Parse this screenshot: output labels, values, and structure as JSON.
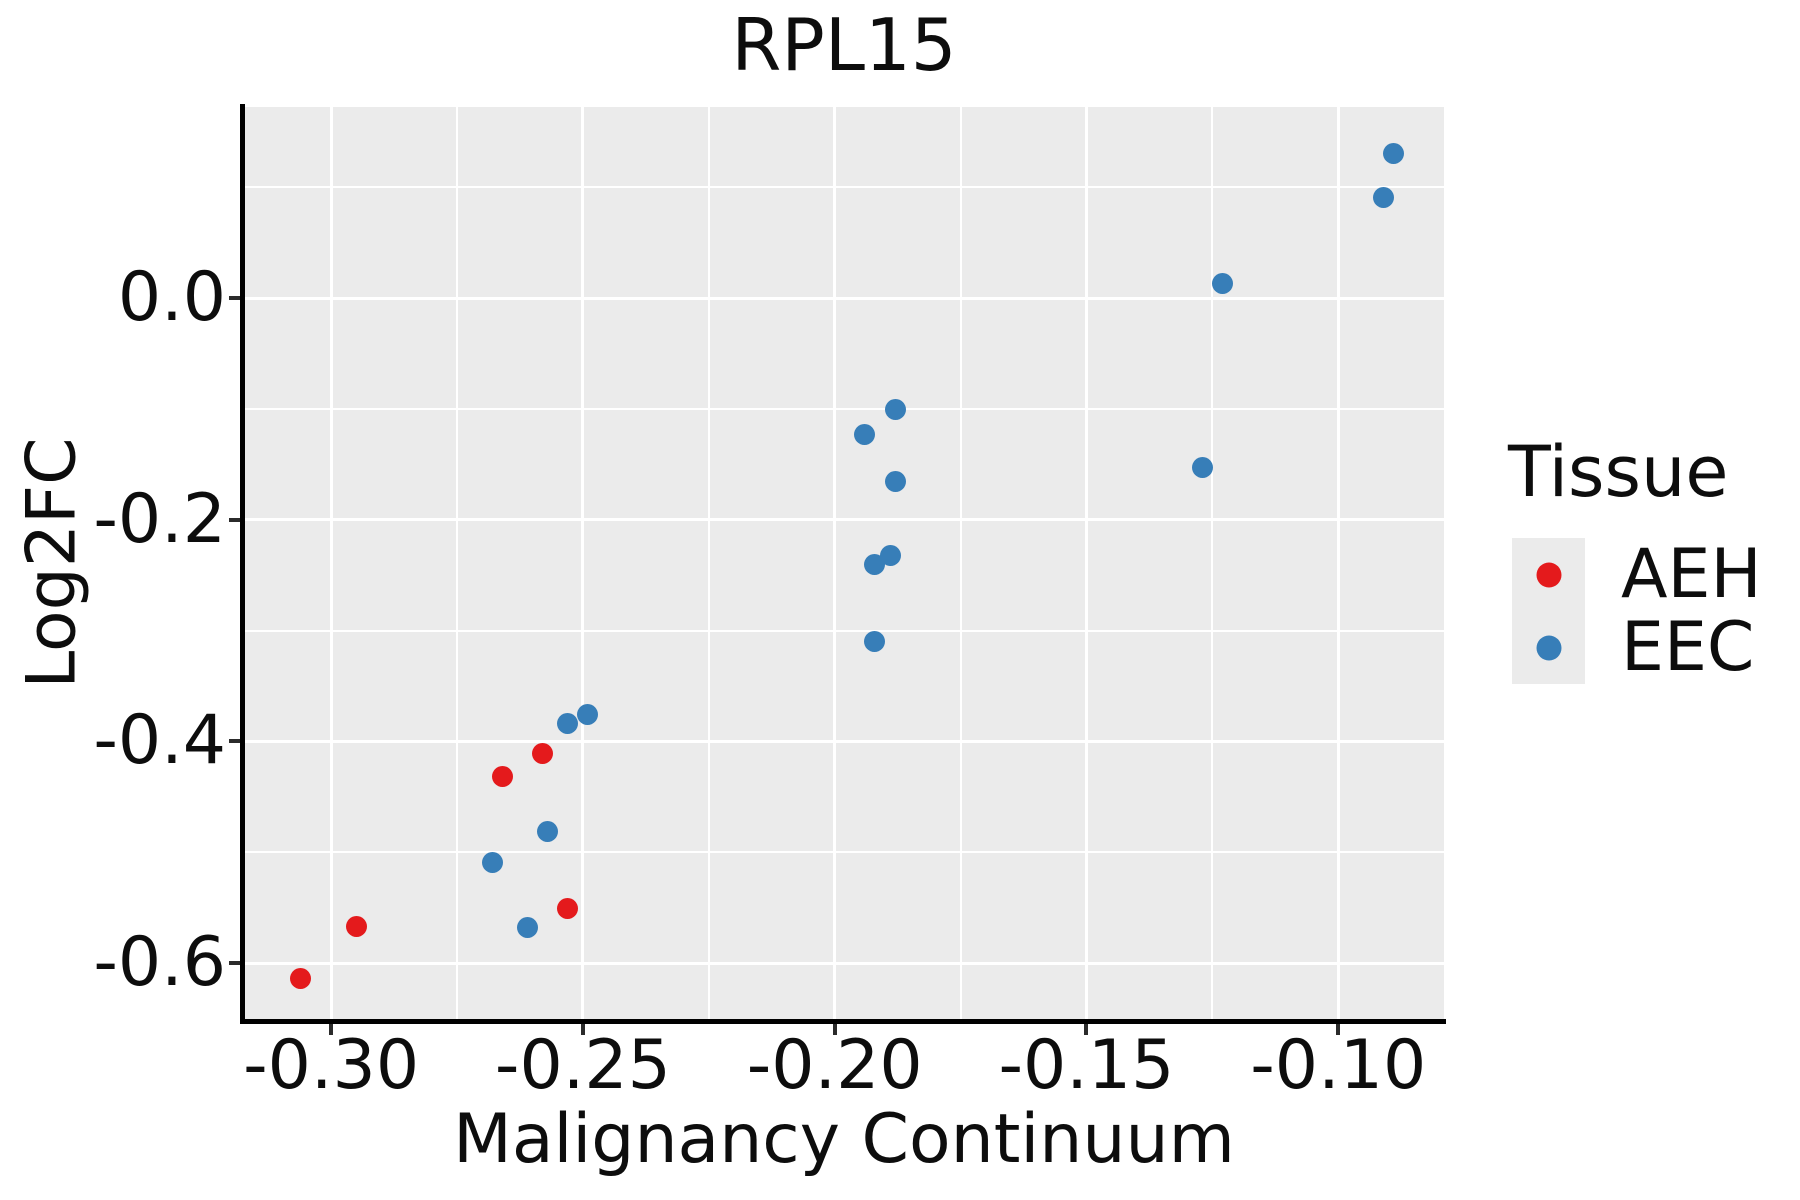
{
  "chart_data": {
    "type": "scatter",
    "title": "RPL15",
    "xlabel": "Malignancy Continuum",
    "ylabel": "Log2FC",
    "xlim": [
      -0.3173,
      -0.079
    ],
    "ylim": [
      -0.6505,
      0.1726
    ],
    "grid": "white major+minor gridlines on grey panel",
    "x_ticks": {
      "values": [
        -0.3,
        -0.25,
        -0.2,
        -0.15,
        -0.1
      ],
      "labels": [
        "-0.30",
        "-0.25",
        "-0.20",
        "-0.15",
        "-0.10"
      ]
    },
    "y_ticks": {
      "values": [
        0.0,
        -0.2,
        -0.4,
        -0.6
      ],
      "labels": [
        "0.0",
        "-0.2",
        "-0.4",
        "-0.6"
      ]
    },
    "x_minor": [
      -0.275,
      -0.225,
      -0.175,
      -0.125
    ],
    "y_minor": [
      0.1,
      -0.1,
      -0.3,
      -0.5
    ],
    "legend": {
      "title": "Tissue",
      "position": "right"
    },
    "series": [
      {
        "name": "AEH",
        "color": "#E41A1C",
        "points": [
          [
            -0.306,
            -0.614
          ],
          [
            -0.295,
            -0.567
          ],
          [
            -0.266,
            -0.432
          ],
          [
            -0.258,
            -0.411
          ],
          [
            -0.253,
            -0.551
          ]
        ]
      },
      {
        "name": "EEC",
        "color": "#377EB8",
        "points": [
          [
            -0.268,
            -0.509
          ],
          [
            -0.261,
            -0.568
          ],
          [
            -0.257,
            -0.481
          ],
          [
            -0.253,
            -0.384
          ],
          [
            -0.249,
            -0.376
          ],
          [
            -0.194,
            -0.123
          ],
          [
            -0.192,
            -0.24
          ],
          [
            -0.192,
            -0.31
          ],
          [
            -0.189,
            -0.232
          ],
          [
            -0.188,
            -0.1
          ],
          [
            -0.188,
            -0.165
          ],
          [
            -0.127,
            -0.153
          ],
          [
            -0.123,
            0.013
          ],
          [
            -0.091,
            0.091
          ],
          [
            -0.089,
            0.131
          ]
        ]
      }
    ],
    "colors": {
      "panel_background": "#EBEBEB",
      "grid": "#FFFFFF",
      "axis_line": "#000000",
      "text": "#0D0D0D",
      "aeh": "#E41A1C",
      "eec": "#377EB8"
    }
  }
}
